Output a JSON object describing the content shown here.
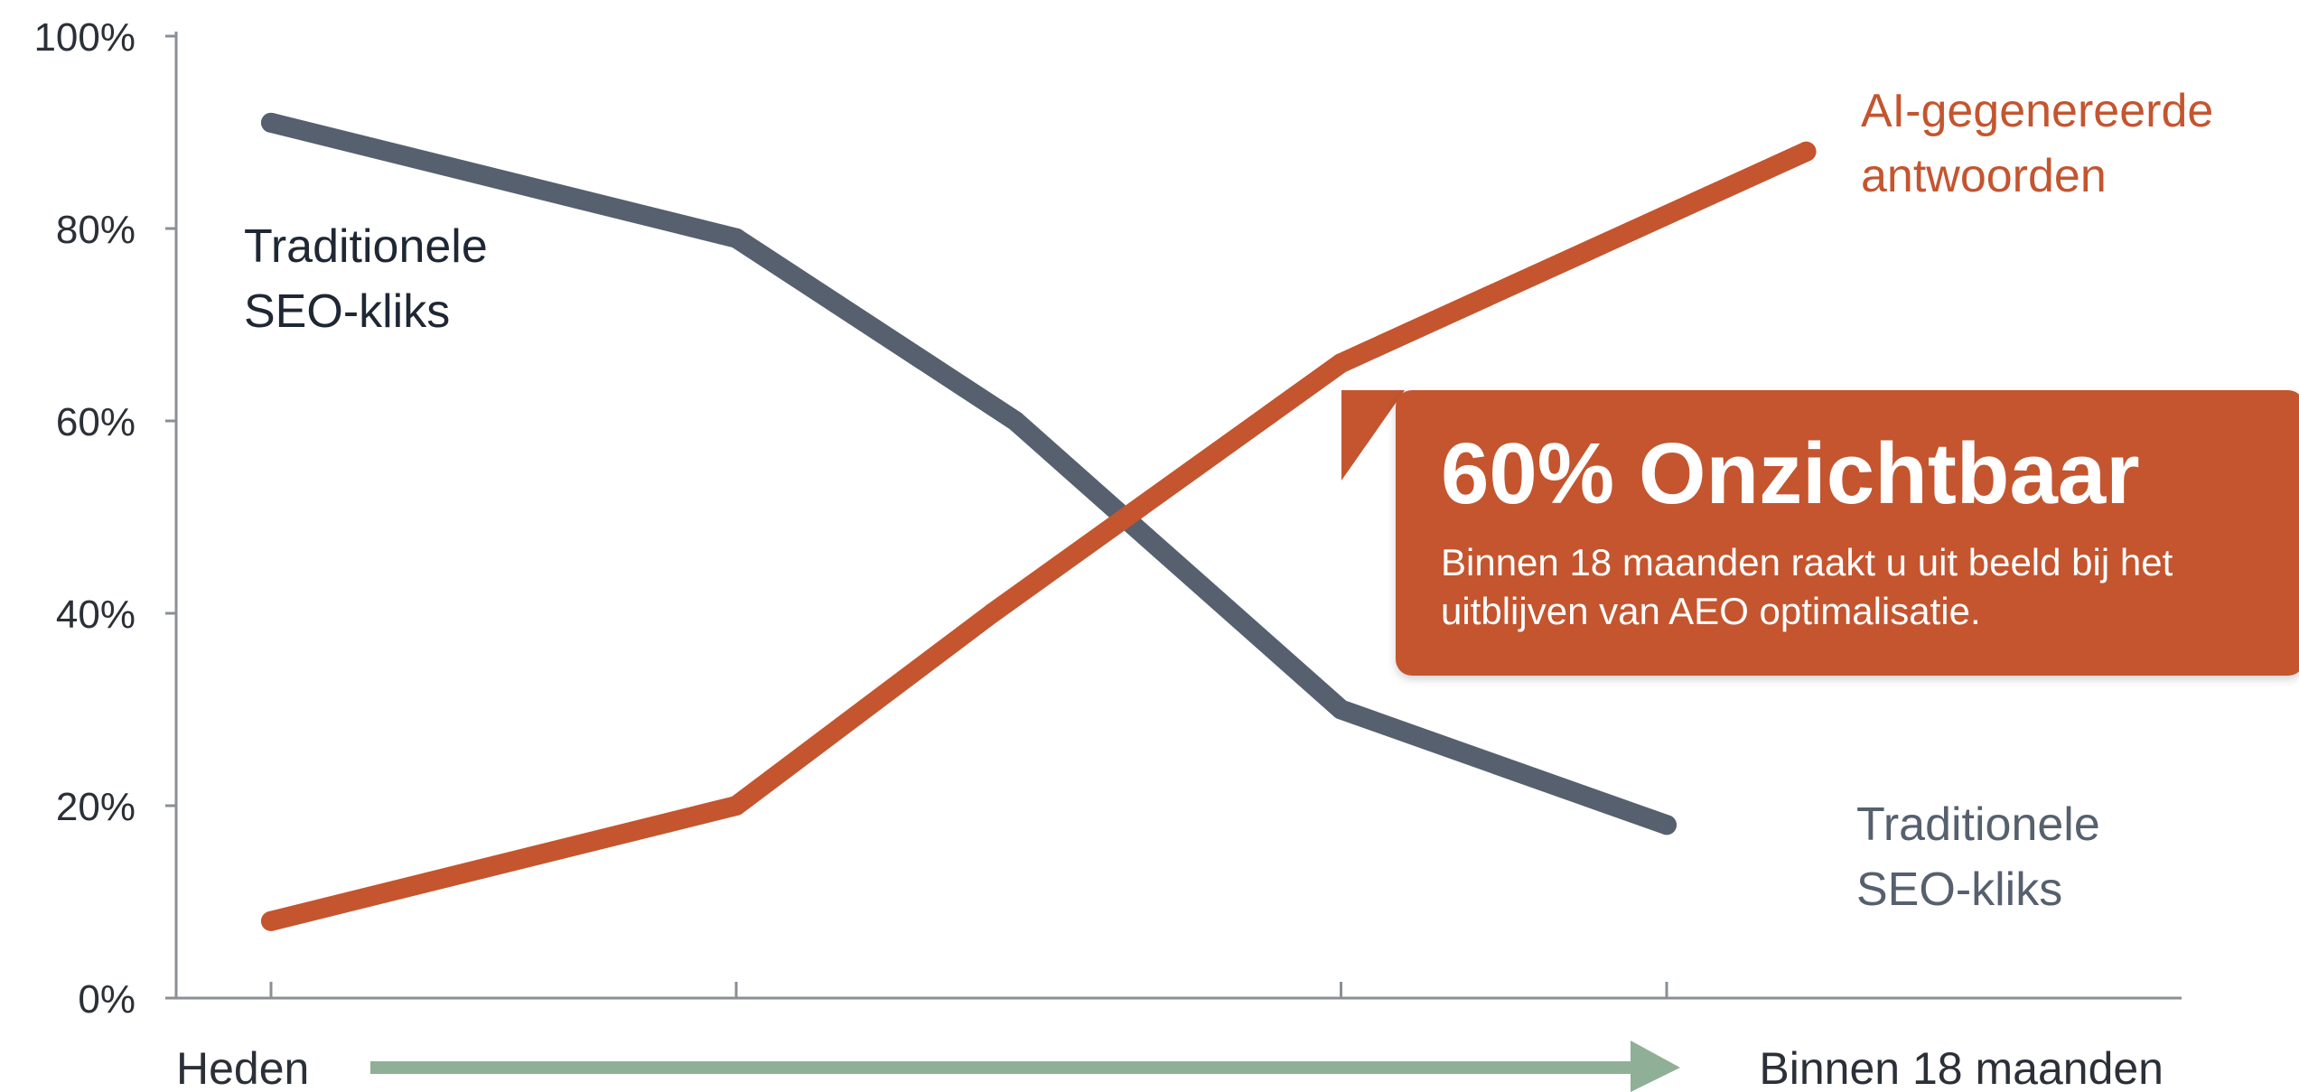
{
  "chart_data": {
    "type": "line",
    "x": [
      0,
      1,
      1.6,
      2.3,
      3
    ],
    "x_category_ticks": [
      0,
      1,
      2.3,
      3
    ],
    "xlabel_start": "Heden",
    "xlabel_end": "Binnen 18 maanden",
    "ylim": [
      0,
      100
    ],
    "yticks": [
      "0%",
      "20%",
      "40%",
      "60%",
      "80%",
      "100%"
    ],
    "grid": false,
    "series": [
      {
        "name": "Traditionele SEO-kliks",
        "values": [
          91,
          79,
          60,
          30,
          18
        ],
        "color": "#56606e",
        "label_lines": [
          "Traditionele",
          "SEO-kliks"
        ],
        "label_color": "#1f2735",
        "end_label_lines": [
          "Traditionele",
          "SEO-kliks"
        ],
        "end_label_color": "#56606e"
      },
      {
        "name": "AI-gegenereerde antwoorden",
        "x": [
          0,
          1,
          1.55,
          2.3,
          3.3
        ],
        "values": [
          8,
          20,
          40,
          66,
          88
        ],
        "color": "#c4552f",
        "end_label_lines": [
          "AI-gegenereerde",
          "antwoorden"
        ],
        "end_label_color": "#c4552f"
      }
    ],
    "arrow_color": "#8fb096",
    "annotation": {
      "title": "60% Onzichtbaar",
      "body": "Binnen 18 maanden raakt u uit beeld bij het uitblijven van AEO optimalisatie.",
      "color": "#c4552f"
    }
  }
}
